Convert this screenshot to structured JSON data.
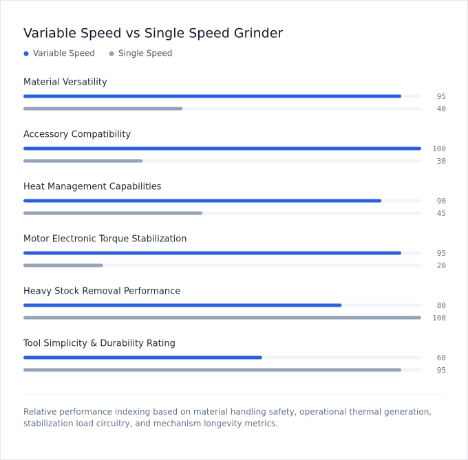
{
  "chart_data": {
    "type": "bar",
    "orientation": "horizontal",
    "title": "Variable Speed vs Single Speed Grinder",
    "categories": [
      "Material Versatility",
      "Accessory Compatibility",
      "Heat Management Capabilities",
      "Motor Electronic Torque Stabilization",
      "Heavy Stock Removal Performance",
      "Tool Simplicity & Durability Rating"
    ],
    "series": [
      {
        "name": "Variable Speed",
        "color": "#2b5fdd",
        "values": [
          95,
          100,
          90,
          95,
          80,
          60
        ]
      },
      {
        "name": "Single Speed",
        "color": "#94a3b8",
        "values": [
          40,
          30,
          45,
          20,
          100,
          95
        ]
      }
    ],
    "xlim": [
      0,
      100
    ],
    "track_color": "#f1f5f9",
    "note": "Relative performance indexing based on material handling safety, operational thermal generation, stabilization load circuitry, and mechanism longevity metrics."
  }
}
